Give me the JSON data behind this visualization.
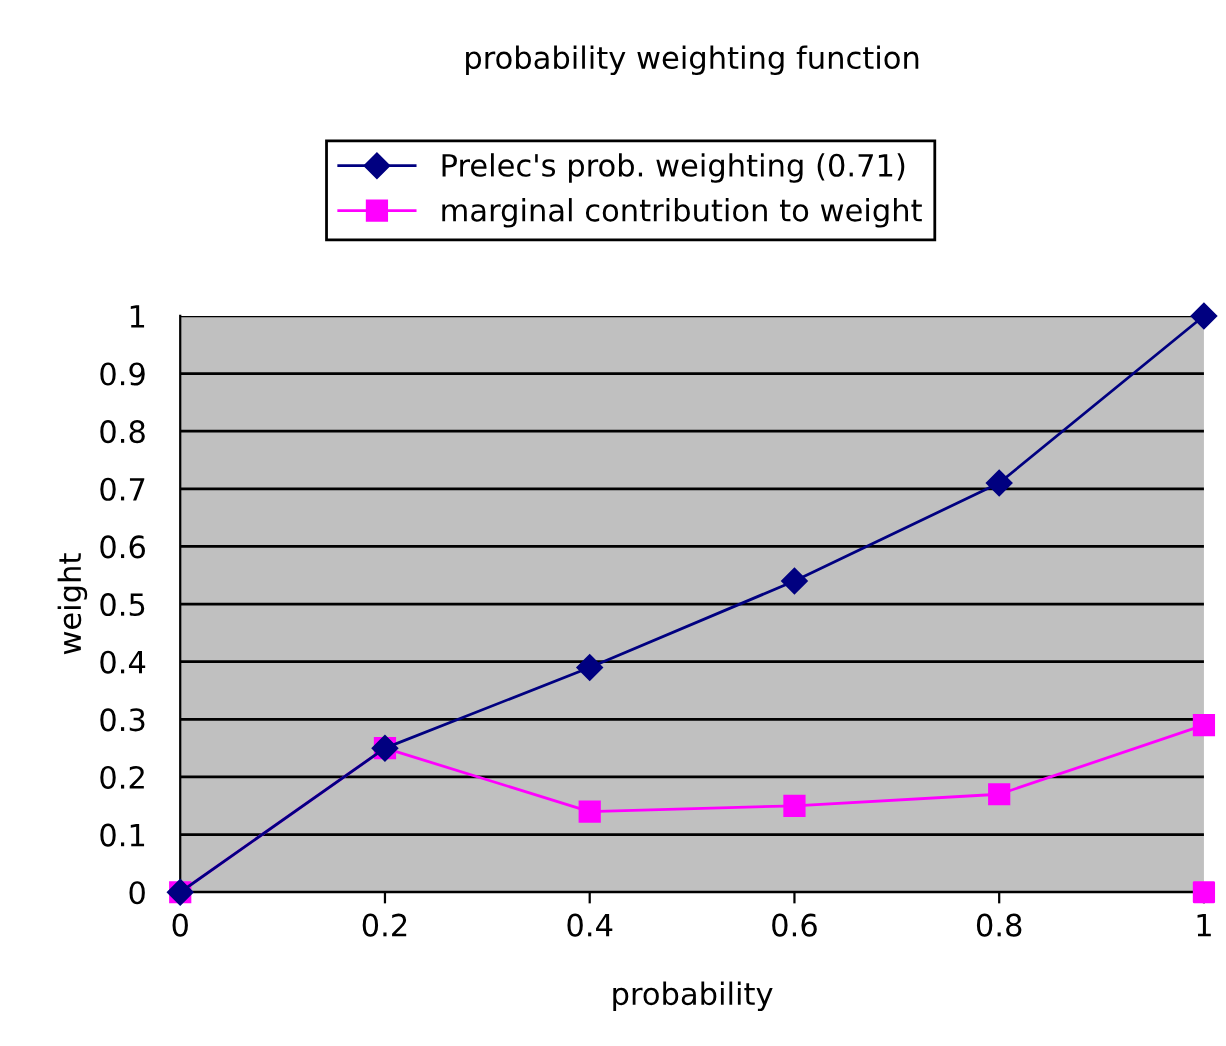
{
  "chart_data": {
    "type": "line",
    "title": "probability weighting function",
    "xlabel": "probability",
    "ylabel": "weight",
    "x": [
      0,
      0.2,
      0.4,
      0.6,
      0.8,
      1
    ],
    "series": [
      {
        "name": "Prelec's prob. weighting (0.71)",
        "color": "#000080",
        "marker": "diamond",
        "values": [
          0,
          0.25,
          0.39,
          0.54,
          0.71,
          1.0
        ]
      },
      {
        "name": "marginal contribution to weight",
        "color": "#ff00ff",
        "marker": "square",
        "values": [
          0,
          0.25,
          0.14,
          0.15,
          0.17,
          0.29
        ]
      },
      {
        "type": "scatter",
        "color": "#ff00ff",
        "marker": "square",
        "x": [
          1
        ],
        "values": [
          0
        ]
      }
    ],
    "xlim": [
      0,
      1
    ],
    "xticks": [
      0,
      0.2,
      0.4,
      0.6,
      0.8,
      1
    ],
    "ylim": [
      0,
      1
    ],
    "yticks": [
      0,
      0.1,
      0.2,
      0.3,
      0.4,
      0.5,
      0.6,
      0.7,
      0.8,
      0.9,
      1
    ],
    "grid": "y",
    "legend": "top"
  }
}
